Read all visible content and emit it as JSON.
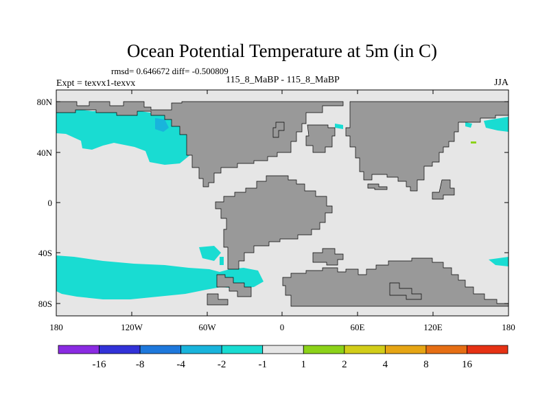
{
  "title": "Ocean Potential Temperature at 5m (in C)",
  "stats_line": "rmsd= 0.646672  diff= -0.500809",
  "left_label": "Expt = texvx1-texvx",
  "center_label": "115_8_MaBP - 115_8_MaBP",
  "season": "JJA",
  "y_ticks": [
    {
      "label": "80N",
      "lat": 80
    },
    {
      "label": "40N",
      "lat": 40
    },
    {
      "label": "0",
      "lat": 0
    },
    {
      "label": "40S",
      "lat": -40
    },
    {
      "label": "80S",
      "lat": -80
    }
  ],
  "x_ticks": [
    {
      "label": "180",
      "lon": -180
    },
    {
      "label": "120W",
      "lon": -120
    },
    {
      "label": "60W",
      "lon": -60
    },
    {
      "label": "0",
      "lon": 0
    },
    {
      "label": "60E",
      "lon": 60
    },
    {
      "label": "120E",
      "lon": 120
    },
    {
      "label": "180",
      "lon": 180
    }
  ],
  "colorbar": {
    "colors": [
      "#8a2be2",
      "#3232d8",
      "#1e78dc",
      "#19b4dc",
      "#19dcd2",
      "#e6e6e6",
      "#8cd219",
      "#d2cd19",
      "#e6a514",
      "#e66e14",
      "#e63214"
    ],
    "labels": [
      "-16",
      "-8",
      "-4",
      "-2",
      "-1",
      "1",
      "2",
      "4",
      "8",
      "16"
    ]
  },
  "colors": {
    "ocean": "#e6e6e6",
    "land": "#999999",
    "anomaly_neg1": "#19dcd2",
    "anomaly_neg2": "#19b4dc",
    "anomaly_pos1": "#8cd219"
  }
}
